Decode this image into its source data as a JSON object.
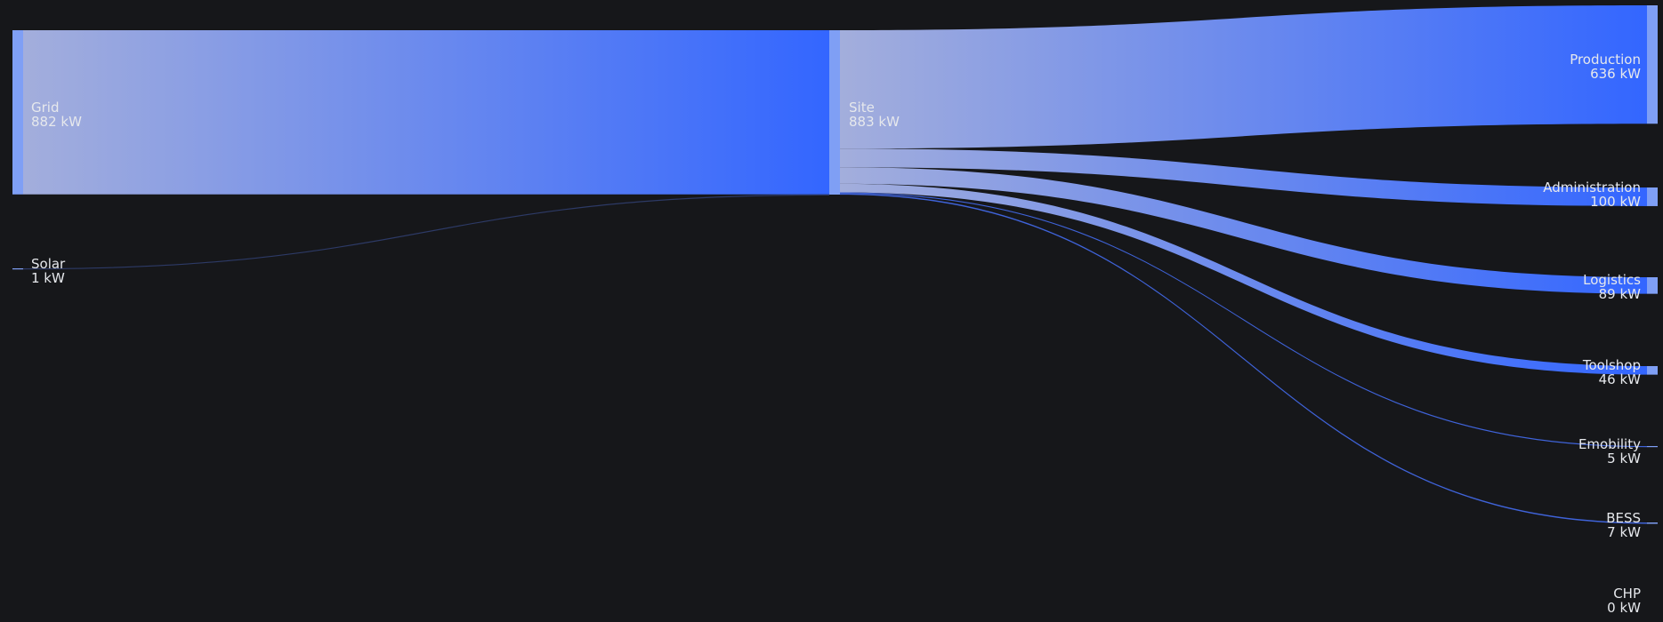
{
  "chart_data": {
    "type": "sankey",
    "unit": "kW",
    "colors": {
      "background": "#16171a",
      "flow_start": "#a3aedc",
      "flow_end": "#3366ff",
      "node": "#7f9ff5",
      "label": "#e6e8ec"
    },
    "sources": [
      {
        "id": "grid",
        "name": "Grid",
        "value_label": "882 kW",
        "value": 882
      },
      {
        "id": "solar",
        "name": "Solar",
        "value_label": "1 kW",
        "value": 1
      }
    ],
    "hub": {
      "id": "site",
      "name": "Site",
      "value_label": "883 kW",
      "value": 883
    },
    "targets": [
      {
        "id": "production",
        "name": "Production",
        "value_label": "636 kW",
        "value": 636
      },
      {
        "id": "administration",
        "name": "Administration",
        "value_label": "100 kW",
        "value": 100
      },
      {
        "id": "logistics",
        "name": "Logistics",
        "value_label": "89 kW",
        "value": 89
      },
      {
        "id": "toolshop",
        "name": "Toolshop",
        "value_label": "46 kW",
        "value": 46
      },
      {
        "id": "emobility",
        "name": "Emobility",
        "value_label": "5 kW",
        "value": 5
      },
      {
        "id": "bess",
        "name": "BESS",
        "value_label": "7 kW",
        "value": 7
      },
      {
        "id": "chp",
        "name": "CHP",
        "value_label": "0 kW",
        "value": 0
      }
    ],
    "links": [
      {
        "source": "grid",
        "target": "site",
        "value": 882
      },
      {
        "source": "solar",
        "target": "site",
        "value": 1
      },
      {
        "source": "site",
        "target": "production",
        "value": 636
      },
      {
        "source": "site",
        "target": "administration",
        "value": 100
      },
      {
        "source": "site",
        "target": "logistics",
        "value": 89
      },
      {
        "source": "site",
        "target": "toolshop",
        "value": 46
      },
      {
        "source": "site",
        "target": "emobility",
        "value": 5
      },
      {
        "source": "site",
        "target": "bess",
        "value": 7
      },
      {
        "source": "site",
        "target": "chp",
        "value": 0
      }
    ]
  }
}
